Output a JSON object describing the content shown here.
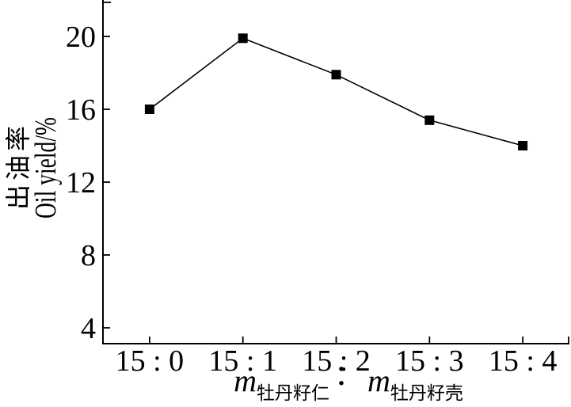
{
  "figure": {
    "background_color": "#ffffff",
    "ink_color": "#000000"
  },
  "chart_data": {
    "type": "line",
    "title": "",
    "categories": [
      "15 : 0",
      "15 : 1",
      "15 : 2",
      "15 : 3",
      "15 : 4"
    ],
    "series": [
      {
        "name": "oil-yield",
        "values": [
          16.0,
          19.9,
          17.9,
          15.4,
          14.0
        ]
      }
    ],
    "marker": "filled-square",
    "line_color": "#000000",
    "marker_color": "#000000",
    "xlabel": {
      "m1": "m",
      "sub1": "牡丹籽仁",
      "sep": "：",
      "m2": "m",
      "sub2": "牡丹籽壳"
    },
    "ylabel": {
      "zh": "出油率",
      "en": "Oil yield/%"
    },
    "yticks": [
      4,
      8,
      12,
      16,
      20
    ],
    "ytick_labels": [
      "4",
      "8",
      "12",
      "16",
      "20"
    ],
    "ylim": [
      3.1,
      22.0
    ],
    "grid": false,
    "legend": "none"
  }
}
